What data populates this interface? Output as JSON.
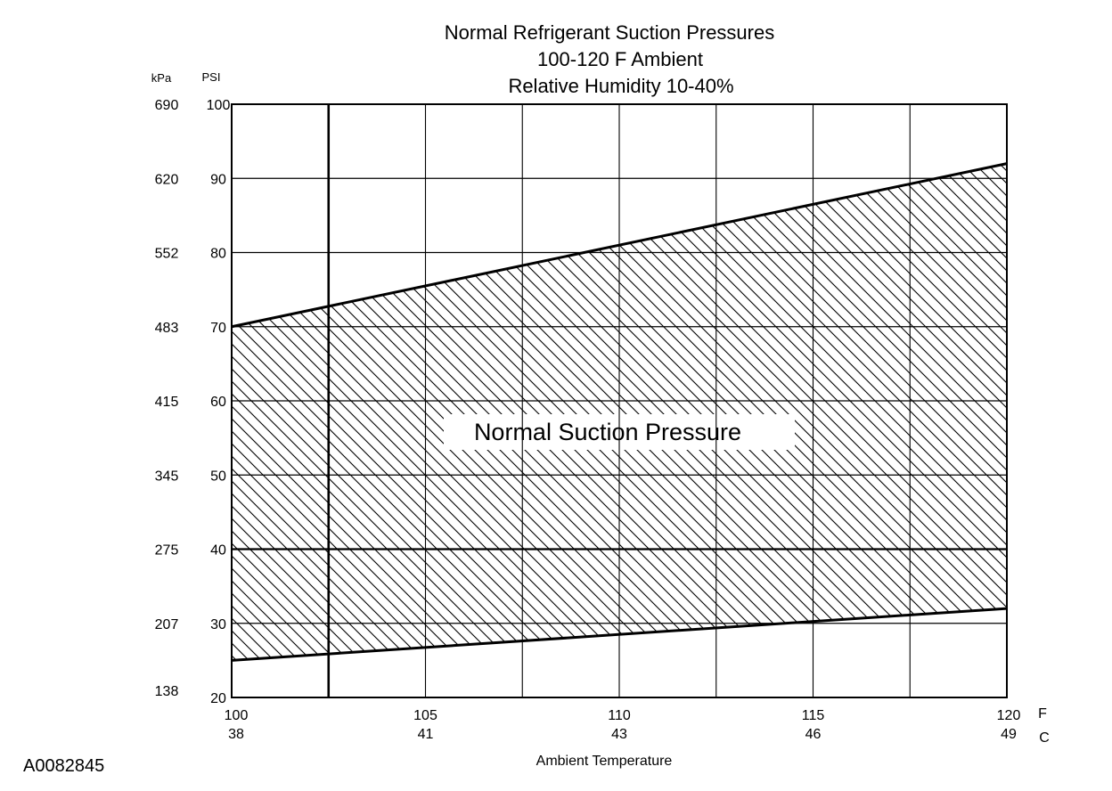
{
  "figure_id": "A0082845",
  "chart_data": {
    "type": "area",
    "title_lines": [
      "Normal  Refrigerant  Suction  Pressures",
      "100-120 F Ambient",
      "Relative Humidity 10-40%"
    ],
    "xlabel": "Ambient Temperature",
    "x_unit_primary": "F",
    "x_unit_secondary": "C",
    "x_ticks_f": [
      "100",
      "105",
      "110",
      "115",
      "120"
    ],
    "x_ticks_c": [
      "38",
      "41",
      "43",
      "46",
      "49"
    ],
    "x_tick_values": [
      100,
      105,
      110,
      115,
      120
    ],
    "xlim": [
      100,
      120
    ],
    "y_unit_primary": "PSI",
    "y_unit_secondary": "kPa",
    "y_ticks_psi": [
      "100",
      "90",
      "80",
      "70",
      "60",
      "50",
      "40",
      "30",
      "20"
    ],
    "y_ticks_kpa": [
      "690",
      "620",
      "552",
      "483",
      "415",
      "345",
      "275",
      "207",
      "138"
    ],
    "y_tick_values": [
      100,
      90,
      80,
      70,
      60,
      50,
      40,
      30,
      20
    ],
    "ylim": [
      20,
      100
    ],
    "grid": true,
    "x_gridlines": [
      102.5,
      105,
      107.5,
      110,
      112.5,
      115,
      117.5
    ],
    "bold_vertical_at": 102.5,
    "bold_horizontal_at": 40,
    "series": [
      {
        "role": "upper",
        "x": [
          100,
          120
        ],
        "y": [
          70,
          92
        ]
      },
      {
        "role": "lower",
        "x": [
          100,
          120
        ],
        "y": [
          25,
          32
        ]
      }
    ],
    "region_label": "Normal Suction Pressure",
    "fill_pattern": "diagonal-hatch"
  }
}
